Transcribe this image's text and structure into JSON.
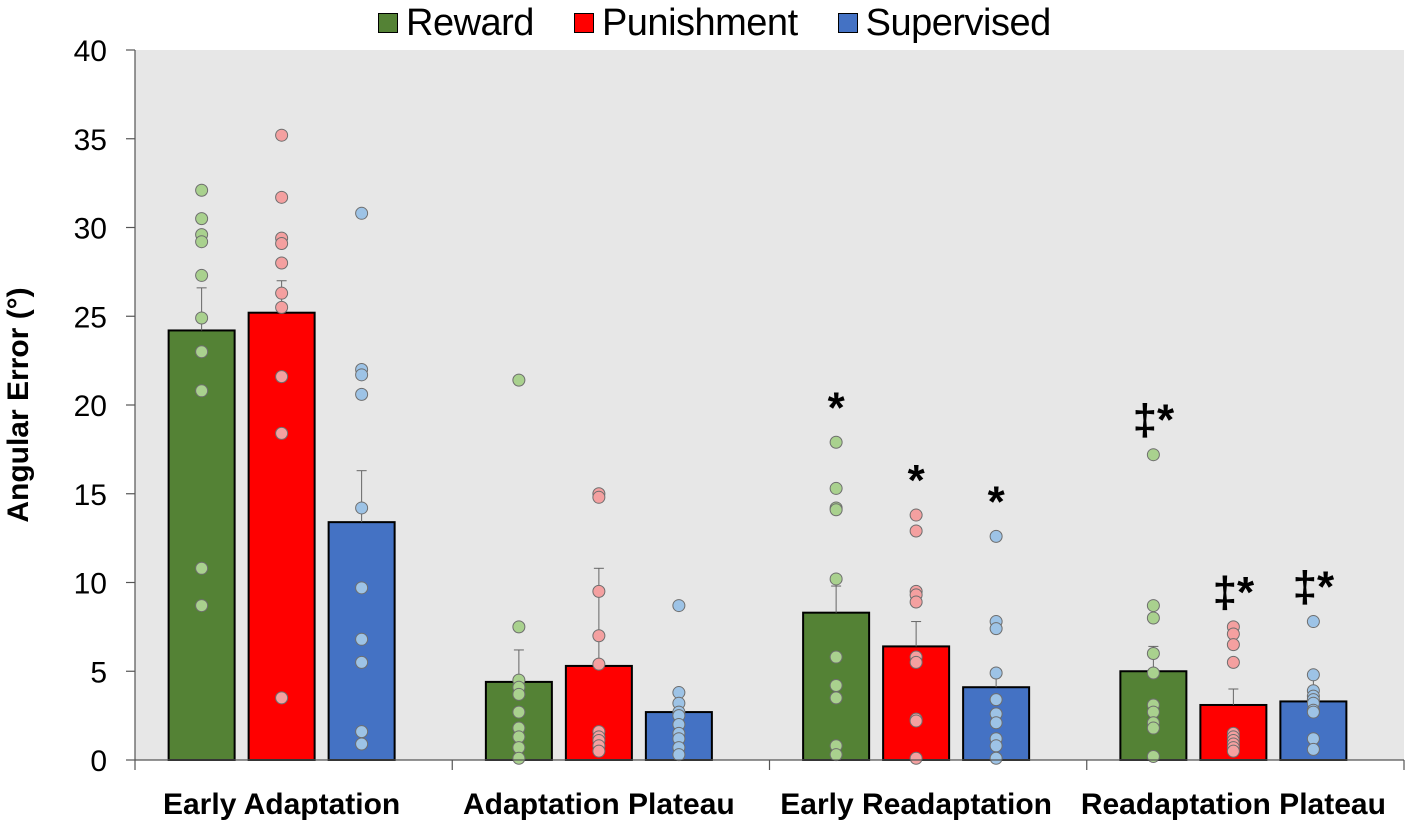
{
  "chart_data": {
    "type": "bar",
    "title": "",
    "xlabel": "",
    "ylabel": "Angular Error (°)",
    "ylim": [
      0,
      40
    ],
    "yticks": [
      0,
      5,
      10,
      15,
      20,
      25,
      30,
      35,
      40
    ],
    "grid": false,
    "legend_position": "top-center",
    "categories": [
      "Early Adaptation",
      "Adaptation Plateau",
      "Early Readaptation",
      "Readaptation Plateau"
    ],
    "series": [
      {
        "name": "Reward",
        "color": "#548235",
        "point_color": "#a9d18e",
        "values": [
          24.2,
          4.4,
          8.3,
          5.0
        ],
        "errors": [
          2.4,
          1.8,
          1.5,
          1.4
        ],
        "points": [
          [
            32.1,
            30.5,
            29.6,
            29.2,
            27.3,
            24.9,
            23.0,
            20.8,
            10.8,
            8.7
          ],
          [
            21.4,
            7.5,
            4.5,
            4.1,
            3.7,
            2.7,
            1.8,
            1.3,
            0.7,
            0.1
          ],
          [
            17.9,
            15.3,
            14.2,
            14.1,
            10.2,
            5.8,
            4.2,
            3.5,
            0.8,
            0.3
          ],
          [
            17.2,
            8.7,
            8.0,
            6.0,
            4.9,
            3.1,
            2.7,
            2.1,
            1.8,
            0.2
          ]
        ],
        "markers": [
          "",
          "",
          "*",
          "‡*"
        ]
      },
      {
        "name": "Punishment",
        "color": "#ff0000",
        "point_color": "#f4a0a0",
        "values": [
          25.2,
          5.3,
          6.4,
          3.1
        ],
        "errors": [
          1.8,
          5.5,
          1.4,
          0.9
        ],
        "points": [
          [
            35.2,
            31.7,
            29.4,
            29.1,
            28.0,
            26.3,
            25.5,
            21.6,
            18.4,
            3.5
          ],
          [
            15.0,
            14.8,
            9.5,
            7.0,
            5.4,
            1.6,
            1.3,
            1.1,
            0.8,
            0.5
          ],
          [
            13.8,
            12.9,
            9.5,
            9.3,
            8.9,
            5.8,
            5.5,
            2.3,
            2.2,
            0.1
          ],
          [
            7.5,
            7.1,
            6.5,
            5.5,
            1.5,
            1.3,
            1.1,
            0.9,
            0.7,
            0.5
          ]
        ],
        "markers": [
          "",
          "",
          "*",
          "‡*"
        ]
      },
      {
        "name": "Supervised",
        "color": "#4472c4",
        "point_color": "#9dc3e6",
        "values": [
          13.4,
          2.7,
          4.1,
          3.3
        ],
        "errors": [
          2.9,
          1.1,
          1.0,
          1.3
        ],
        "points": [
          [
            30.8,
            22.0,
            21.7,
            20.6,
            14.2,
            9.7,
            6.8,
            5.5,
            1.6,
            0.9
          ],
          [
            8.7,
            3.8,
            3.2,
            2.7,
            2.5,
            2.0,
            1.5,
            1.2,
            0.7,
            0.3
          ],
          [
            12.6,
            7.8,
            7.4,
            4.9,
            3.4,
            2.6,
            2.1,
            1.2,
            0.8,
            0.1
          ],
          [
            7.8,
            4.8,
            3.9,
            3.6,
            3.4,
            3.2,
            2.8,
            2.7,
            1.2,
            0.6
          ]
        ],
        "markers": [
          "",
          "",
          "*",
          "‡*"
        ]
      }
    ]
  }
}
